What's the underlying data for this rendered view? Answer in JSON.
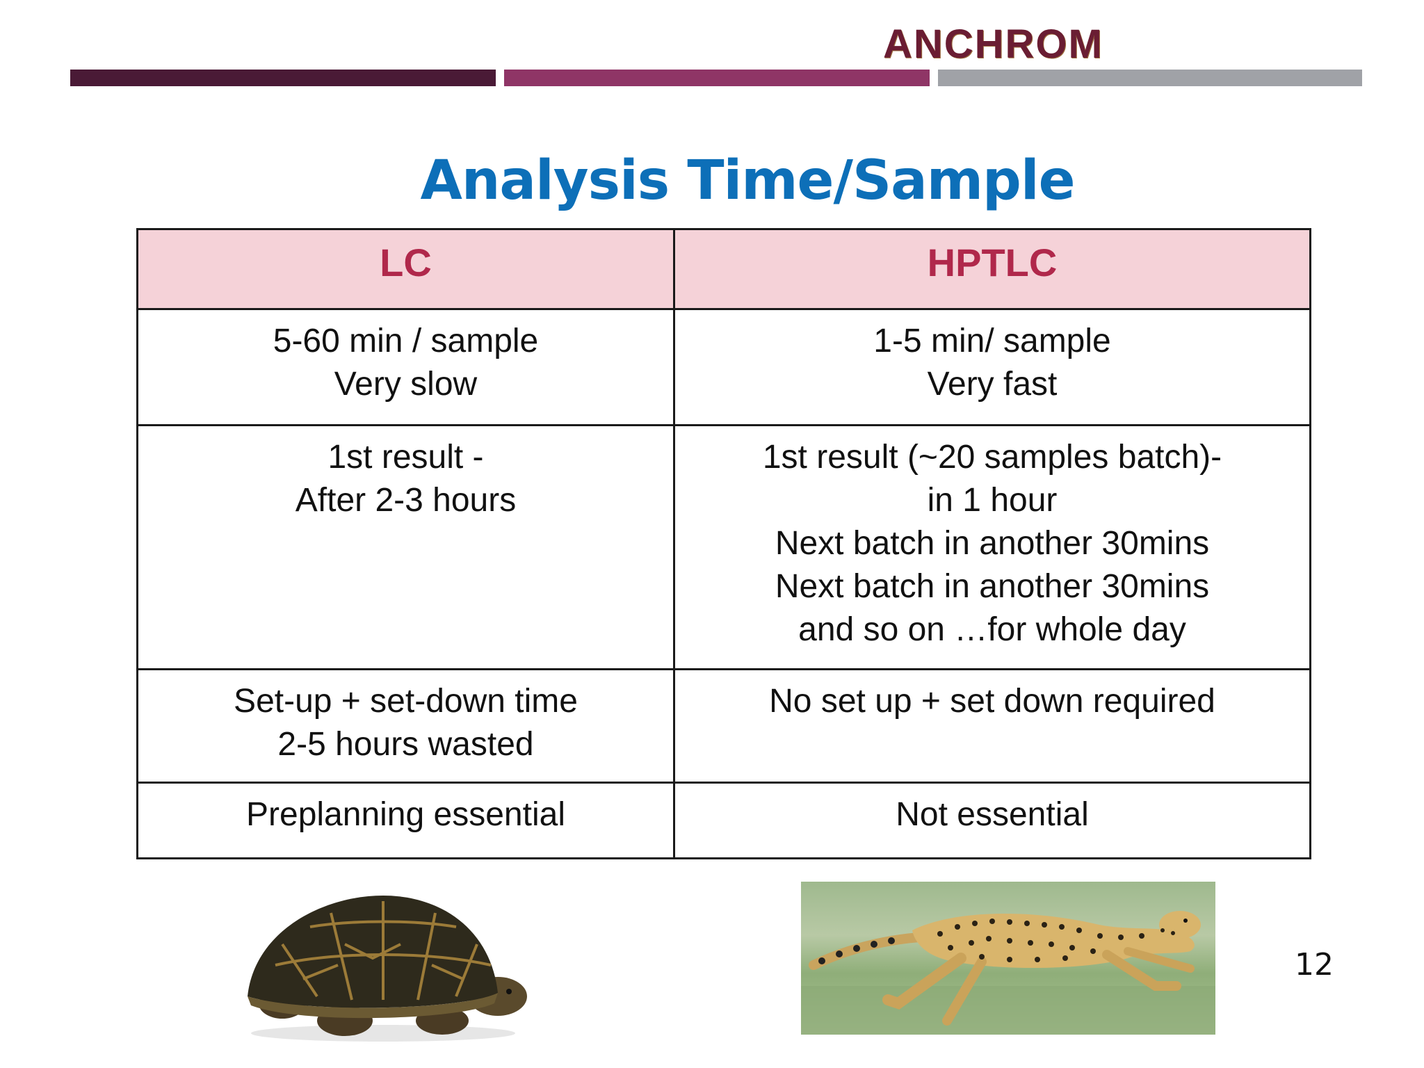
{
  "header": {
    "logo_text": "ANCHROM",
    "brand_colors": [
      "#4a1a36",
      "#8f3566",
      "#a0a2a7"
    ]
  },
  "slide": {
    "title": "Analysis Time/Sample",
    "page_number": "12"
  },
  "table": {
    "headers": [
      "LC",
      "HPTLC"
    ],
    "rows": [
      [
        "5-60 min / sample\nVery slow",
        "1-5 min/ sample\nVery fast"
      ],
      [
        "1st result -\nAfter 2-3 hours",
        "1st result  (~20 samples batch)-\nin 1 hour\nNext batch in another 30mins\nNext batch in another 30mins\n and so on …for whole day"
      ],
      [
        "Set-up + set-down time\n2-5 hours wasted",
        "No set up + set down required"
      ],
      [
        "Preplanning essential",
        "Not essential"
      ]
    ]
  },
  "images": {
    "left": "turtle-image",
    "right": "cheetah-image"
  },
  "colors": {
    "title": "#0d6fb8",
    "header_bg": "#f5d2d8",
    "header_text": "#b0284b"
  }
}
